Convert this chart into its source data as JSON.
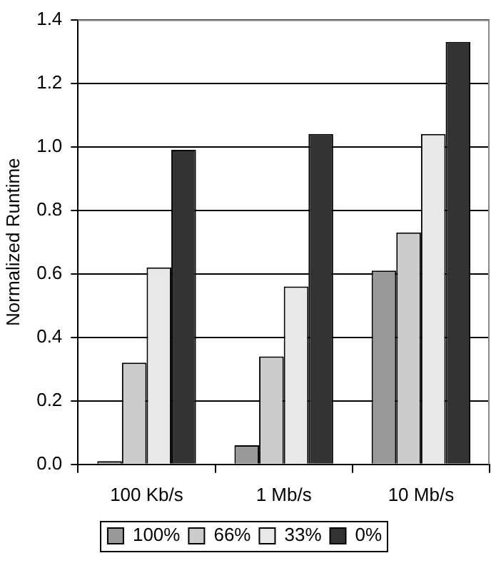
{
  "chart_data": {
    "type": "bar",
    "ylabel": "Normalized Runtime",
    "categories": [
      "100 Kb/s",
      "1 Mb/s",
      "10 Mb/s"
    ],
    "series": [
      {
        "name": "100%",
        "color": "#999999",
        "values": [
          0.01,
          0.06,
          0.61
        ]
      },
      {
        "name": "66%",
        "color": "#cccccc",
        "values": [
          0.32,
          0.34,
          0.73
        ]
      },
      {
        "name": "33%",
        "color": "#e8e8e8",
        "values": [
          0.62,
          0.56,
          1.04
        ]
      },
      {
        "name": "0%",
        "color": "#333333",
        "values": [
          0.99,
          1.04,
          1.33
        ]
      }
    ],
    "ylim": [
      0,
      1.4
    ],
    "yticks": [
      {
        "value": 0,
        "label": "0.0"
      },
      {
        "value": 0.2,
        "label": "0.2"
      },
      {
        "value": 0.4,
        "label": "0.4"
      },
      {
        "value": 0.6,
        "label": "0.6"
      },
      {
        "value": 0.8,
        "label": "0.8"
      },
      {
        "value": 1,
        "label": "1.0"
      },
      {
        "value": 1.2,
        "label": "1.2"
      },
      {
        "value": 1.4,
        "label": "1.4"
      }
    ],
    "grid": "y",
    "legend": "bottom"
  }
}
